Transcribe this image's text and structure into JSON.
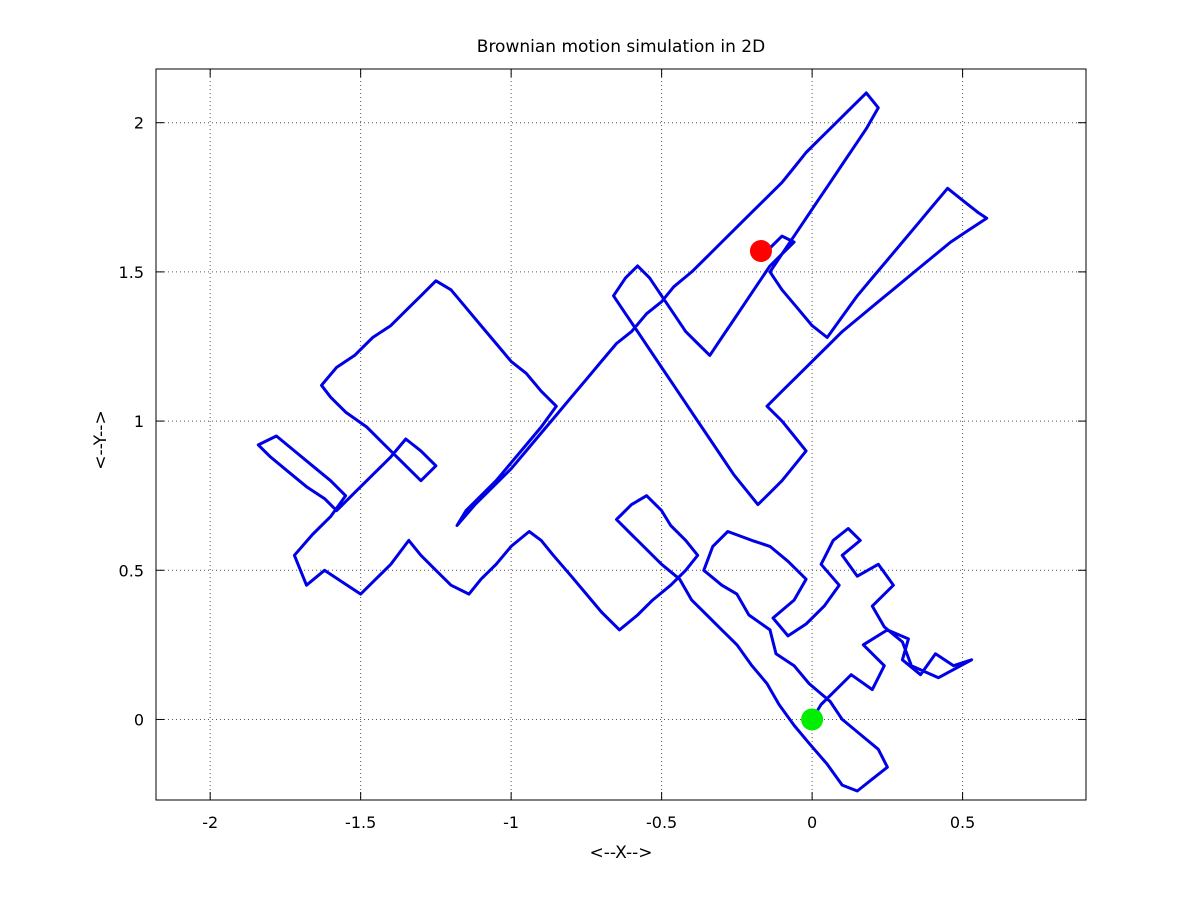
{
  "chart_data": {
    "type": "line",
    "title": "Brownian motion simulation in 2D",
    "xlabel": "<--X-->",
    "ylabel": "<--Y-->",
    "xlim": [
      -2.18,
      0.91
    ],
    "ylim": [
      -0.27,
      2.18
    ],
    "xticks": [
      -2,
      -1.5,
      -1,
      -0.5,
      0,
      0.5
    ],
    "xtick_labels": [
      "-2",
      "-1.5",
      "-1",
      "-0.5",
      "0",
      "0.5"
    ],
    "yticks": [
      0,
      0.5,
      1,
      1.5,
      2
    ],
    "ytick_labels": [
      "0",
      "0.5",
      "1",
      "1.5",
      "2"
    ],
    "grid": true,
    "grid_style": "dotted",
    "series": [
      {
        "color": "#0000e6",
        "x": [
          0,
          0.03,
          0.08,
          0.13,
          0.2,
          0.24,
          0.17,
          0.25,
          0.32,
          0.3,
          0.36,
          0.41,
          0.47,
          0.53,
          0.42,
          0.33,
          0.3,
          0.24,
          0.2,
          0.27,
          0.22,
          0.15,
          0.1,
          0.16,
          0.12,
          0.07,
          0.03,
          0.09,
          0.04,
          -0.02,
          -0.08,
          -0.13,
          -0.06,
          -0.02,
          -0.08,
          -0.14,
          -0.2,
          -0.28,
          -0.33,
          -0.36,
          -0.3,
          -0.25,
          -0.21,
          -0.14,
          -0.12,
          -0.06,
          -0.01,
          0.06,
          0.1,
          0.16,
          0.22,
          0.25,
          0.2,
          0.15,
          0.1,
          0.05,
          -0.01,
          -0.06,
          -0.11,
          -0.15,
          -0.2,
          -0.25,
          -0.3,
          -0.35,
          -0.4,
          -0.44,
          -0.5,
          -0.56,
          -0.6,
          -0.65,
          -0.6,
          -0.55,
          -0.5,
          -0.47,
          -0.42,
          -0.38,
          -0.42,
          -0.47,
          -0.53,
          -0.58,
          -0.64,
          -0.7,
          -0.75,
          -0.8,
          -0.86,
          -0.9,
          -0.94,
          -1,
          -1.05,
          -1.1,
          -1.14,
          -1.2,
          -1.25,
          -1.3,
          -1.34,
          -1.4,
          -1.45,
          -1.5,
          -1.56,
          -1.62,
          -1.68,
          -1.72,
          -1.66,
          -1.6,
          -1.55,
          -1.6,
          -1.66,
          -1.72,
          -1.78,
          -1.84,
          -1.8,
          -1.74,
          -1.68,
          -1.62,
          -1.58,
          -1.52,
          -1.46,
          -1.4,
          -1.35,
          -1.3,
          -1.25,
          -1.3,
          -1.36,
          -1.42,
          -1.48,
          -1.55,
          -1.6,
          -1.63,
          -1.58,
          -1.52,
          -1.46,
          -1.4,
          -1.34,
          -1.3,
          -1.25,
          -1.2,
          -1.15,
          -1.1,
          -1.05,
          -1,
          -0.95,
          -0.9,
          -0.85,
          -0.9,
          -0.95,
          -1,
          -1.05,
          -1.1,
          -1.15,
          -1.18,
          -1.12,
          -1.06,
          -1,
          -0.95,
          -0.9,
          -0.85,
          -0.8,
          -0.75,
          -0.7,
          -0.65,
          -0.6,
          -0.55,
          -0.5,
          -0.46,
          -0.4,
          -0.35,
          -0.3,
          -0.25,
          -0.2,
          -0.15,
          -0.1,
          -0.06,
          -0.02,
          0.03,
          0.08,
          0.13,
          0.18,
          0.22,
          0.18,
          0.14,
          0.1,
          0.06,
          0.02,
          -0.02,
          -0.06,
          -0.1,
          -0.14,
          -0.1,
          -0.05,
          0,
          0.05,
          0.1,
          0.15,
          0.2,
          0.25,
          0.3,
          0.35,
          0.4,
          0.45,
          0.5,
          0.55,
          0.58,
          0.52,
          0.46,
          0.4,
          0.34,
          0.28,
          0.22,
          0.16,
          0.1,
          0.05,
          0,
          -0.05,
          -0.1,
          -0.15,
          -0.1,
          -0.06,
          -0.02,
          -0.06,
          -0.1,
          -0.14,
          -0.18,
          -0.22,
          -0.26,
          -0.3,
          -0.34,
          -0.38,
          -0.42,
          -0.46,
          -0.5,
          -0.54,
          -0.58,
          -0.62,
          -0.66,
          -0.62,
          -0.58,
          -0.54,
          -0.5,
          -0.46,
          -0.42,
          -0.38,
          -0.34,
          -0.3,
          -0.26,
          -0.22,
          -0.18,
          -0.14,
          -0.1,
          -0.06,
          -0.1,
          -0.14,
          -0.17
        ],
        "y": [
          0,
          0.05,
          0.1,
          0.15,
          0.1,
          0.18,
          0.25,
          0.3,
          0.27,
          0.2,
          0.15,
          0.22,
          0.18,
          0.2,
          0.14,
          0.18,
          0.26,
          0.31,
          0.38,
          0.45,
          0.52,
          0.48,
          0.55,
          0.6,
          0.64,
          0.6,
          0.52,
          0.45,
          0.38,
          0.32,
          0.28,
          0.34,
          0.4,
          0.47,
          0.53,
          0.58,
          0.6,
          0.63,
          0.58,
          0.5,
          0.45,
          0.42,
          0.35,
          0.3,
          0.22,
          0.18,
          0.12,
          0.06,
          0,
          -0.05,
          -0.1,
          -0.16,
          -0.2,
          -0.24,
          -0.22,
          -0.15,
          -0.08,
          -0.02,
          0.05,
          0.12,
          0.18,
          0.25,
          0.3,
          0.35,
          0.4,
          0.47,
          0.52,
          0.58,
          0.62,
          0.67,
          0.72,
          0.75,
          0.7,
          0.65,
          0.6,
          0.55,
          0.5,
          0.45,
          0.4,
          0.35,
          0.3,
          0.36,
          0.42,
          0.48,
          0.55,
          0.6,
          0.63,
          0.58,
          0.52,
          0.47,
          0.42,
          0.45,
          0.5,
          0.55,
          0.6,
          0.52,
          0.47,
          0.42,
          0.46,
          0.5,
          0.45,
          0.55,
          0.62,
          0.68,
          0.75,
          0.8,
          0.85,
          0.9,
          0.95,
          0.92,
          0.88,
          0.83,
          0.78,
          0.74,
          0.7,
          0.76,
          0.82,
          0.88,
          0.94,
          0.9,
          0.85,
          0.8,
          0.86,
          0.92,
          0.98,
          1.03,
          1.08,
          1.12,
          1.18,
          1.22,
          1.28,
          1.32,
          1.38,
          1.42,
          1.47,
          1.44,
          1.38,
          1.32,
          1.26,
          1.2,
          1.16,
          1.1,
          1.05,
          0.98,
          0.92,
          0.86,
          0.8,
          0.75,
          0.7,
          0.65,
          0.72,
          0.78,
          0.84,
          0.9,
          0.96,
          1.02,
          1.08,
          1.14,
          1.2,
          1.26,
          1.3,
          1.36,
          1.4,
          1.45,
          1.5,
          1.55,
          1.6,
          1.65,
          1.7,
          1.75,
          1.8,
          1.85,
          1.9,
          1.95,
          2,
          2.05,
          2.1,
          2.05,
          1.98,
          1.92,
          1.86,
          1.8,
          1.74,
          1.68,
          1.62,
          1.56,
          1.5,
          1.44,
          1.38,
          1.32,
          1.28,
          1.35,
          1.42,
          1.48,
          1.54,
          1.6,
          1.66,
          1.72,
          1.78,
          1.74,
          1.7,
          1.68,
          1.64,
          1.6,
          1.55,
          1.5,
          1.45,
          1.4,
          1.35,
          1.3,
          1.25,
          1.2,
          1.15,
          1.1,
          1.05,
          1,
          0.95,
          0.9,
          0.85,
          0.8,
          0.76,
          0.72,
          0.77,
          0.82,
          0.88,
          0.94,
          1,
          1.06,
          1.12,
          1.18,
          1.24,
          1.3,
          1.36,
          1.42,
          1.48,
          1.52,
          1.48,
          1.42,
          1.36,
          1.3,
          1.26,
          1.22,
          1.28,
          1.34,
          1.4,
          1.46,
          1.52,
          1.56,
          1.6,
          1.62,
          1.58,
          1.57
        ]
      }
    ],
    "markers": [
      {
        "x": 0,
        "y": 0,
        "color": "#00ee00"
      },
      {
        "x": -0.17,
        "y": 1.57,
        "color": "#ff0000"
      }
    ]
  }
}
